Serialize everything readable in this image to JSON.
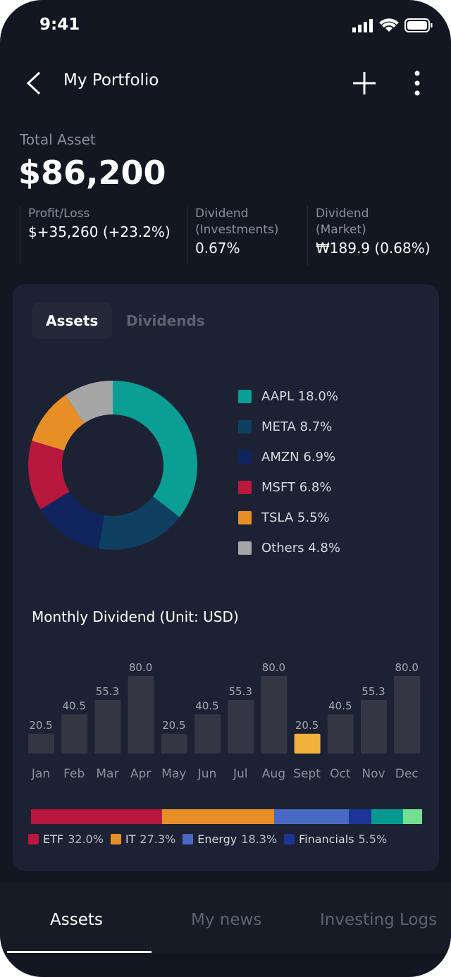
{
  "status": {
    "time": "9:41"
  },
  "header": {
    "title": "My Portfolio"
  },
  "summary": {
    "total_label": "Total Asset",
    "total_value": "$86,200",
    "stats": [
      {
        "label1": "Profit/Loss",
        "label2": "",
        "value": "$+35,260 (+23.2%)"
      },
      {
        "label1": "Dividend",
        "label2": "(Investments)",
        "value": "0.67%"
      },
      {
        "label1": "Dividend",
        "label2": "(Market)",
        "value": "₩189.9 (0.68%)"
      }
    ]
  },
  "tabs": [
    {
      "label": "Assets",
      "active": true
    },
    {
      "label": "Dividends",
      "active": false
    }
  ],
  "chart_data": [
    {
      "type": "pie",
      "donut": true,
      "slices": [
        {
          "name": "AAPL",
          "value": 18.0,
          "label": "AAPL 18.0%",
          "color": "#0a9e94"
        },
        {
          "name": "META",
          "value": 8.7,
          "label": "META 8.7%",
          "color": "#0e3f61"
        },
        {
          "name": "AMZN",
          "value": 6.9,
          "label": "AMZN 6.9%",
          "color": "#10255e"
        },
        {
          "name": "MSFT",
          "value": 6.8,
          "label": "MSFT 6.8%",
          "color": "#b8173e"
        },
        {
          "name": "TSLA",
          "value": 5.5,
          "label": "TSLA 5.5%",
          "color": "#e78f26"
        },
        {
          "name": "Others",
          "value": 4.8,
          "label": "Others 4.8%",
          "color": "#a6a6a6"
        }
      ]
    },
    {
      "type": "bar",
      "title": "Monthly Dividend (Unit: USD)",
      "categories": [
        "Jan",
        "Feb",
        "Mar",
        "Apr",
        "May",
        "Jun",
        "Jul",
        "Aug",
        "Sept",
        "Oct",
        "Nov",
        "Dec"
      ],
      "values": [
        20.5,
        40.5,
        55.3,
        80.0,
        20.5,
        40.5,
        55.3,
        80.0,
        20.5,
        40.5,
        55.3,
        80.0
      ],
      "labels": [
        "20.5",
        "40.5",
        "55.3",
        "80.0",
        "20.5",
        "40.5",
        "55.3",
        "80.0",
        "20.5",
        "40.5",
        "55.3",
        "80.0"
      ],
      "highlight": "Sept",
      "bar_color": "#343743",
      "highlight_color": "#f2b03c",
      "ylim": [
        0,
        80
      ]
    },
    {
      "type": "bar",
      "stacked": true,
      "orientation": "horizontal",
      "segments": [
        {
          "name": "ETF",
          "value": 32.0,
          "label": "32.0%",
          "color": "#b8173e"
        },
        {
          "name": "IT",
          "value": 27.3,
          "label": "27.3%",
          "color": "#e78f26"
        },
        {
          "name": "Energy",
          "value": 18.3,
          "label": "18.3%",
          "color": "#4a69c2"
        },
        {
          "name": "Financials",
          "value": 5.5,
          "label": "5.5%",
          "color": "#1c3397"
        },
        {
          "value": 7.6,
          "color": "#079890"
        },
        {
          "value": 4.7,
          "color": "#73df8f"
        }
      ]
    }
  ],
  "bottom_nav": [
    {
      "label": "Assets",
      "active": true
    },
    {
      "label": "My news"
    },
    {
      "label": "Investing Logs"
    }
  ]
}
